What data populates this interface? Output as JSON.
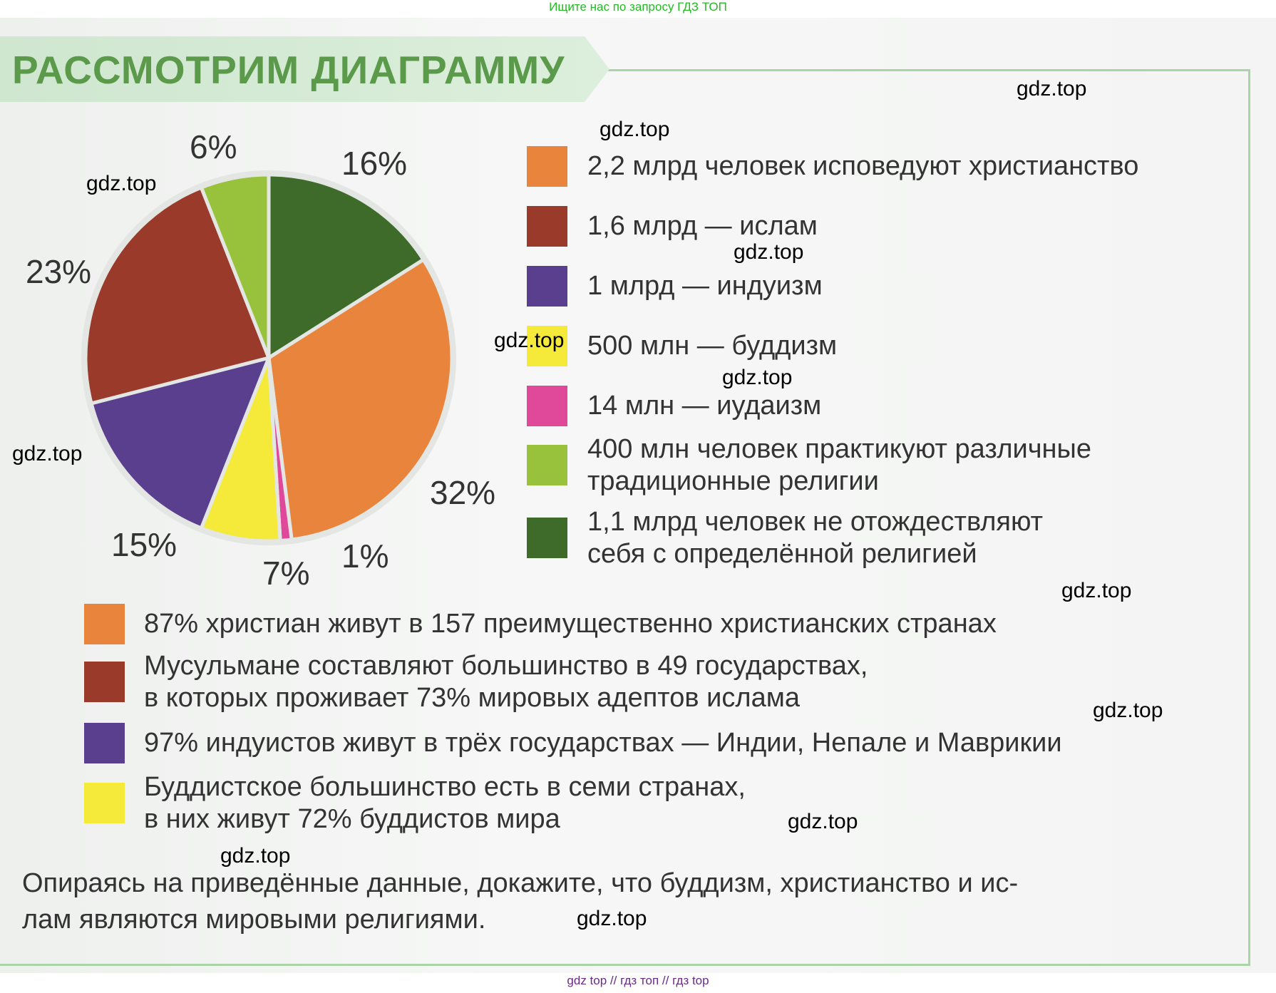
{
  "top_note": "Ищите нас по запросу ГДЗ ТОП",
  "footer": "gdz top  //  гдз топ  //  гдз top",
  "title": "РАССМОТРИМ ДИАГРАММУ",
  "chart_data": {
    "type": "pie",
    "title": "",
    "start": "top, clockwise",
    "slices": [
      {
        "name": "Не отождествляют себя с религией",
        "value": 16,
        "label": "16%",
        "color": "#3e6a2a"
      },
      {
        "name": "Христианство",
        "value": 32,
        "label": "32%",
        "color": "#e8843c"
      },
      {
        "name": "Иудаизм",
        "value": 1,
        "label": "1%",
        "color": "#e0489a"
      },
      {
        "name": "Буддизм",
        "value": 7,
        "label": "7%",
        "color": "#f5ea3a"
      },
      {
        "name": "Индуизм",
        "value": 15,
        "label": "15%",
        "color": "#5a3f8e"
      },
      {
        "name": "Ислам",
        "value": 23,
        "label": "23%",
        "color": "#9a3a2a"
      },
      {
        "name": "Традиционные религии",
        "value": 6,
        "label": "6%",
        "color": "#98c23c"
      }
    ]
  },
  "legend": [
    {
      "lines": [
        "2,2 млрд человек исповедуют христианство"
      ],
      "color": "#e8843c"
    },
    {
      "lines": [
        "1,6 млрд — ислам"
      ],
      "color": "#9a3a2a"
    },
    {
      "lines": [
        "1 млрд — индуизм"
      ],
      "color": "#5a3f8e"
    },
    {
      "lines": [
        "500 млн — буддизм"
      ],
      "color": "#f5ea3a"
    },
    {
      "lines": [
        "14 млн — иудаизм"
      ],
      "color": "#e0489a"
    },
    {
      "lines": [
        "400 млн человек практикуют различные",
        "традиционные религии"
      ],
      "color": "#98c23c"
    },
    {
      "lines": [
        "1,1 млрд человек не отождествляют",
        "себя с определённой религией"
      ],
      "color": "#3e6a2a"
    }
  ],
  "facts": [
    {
      "lines": [
        "87% христиан живут в 157 преимущественно христианских странах"
      ],
      "color": "#e8843c"
    },
    {
      "lines": [
        "Мусульмане составляют большинство в 49 государствах,",
        "в которых проживает 73% мировых адептов ислама"
      ],
      "color": "#9a3a2a"
    },
    {
      "lines": [
        "97% индуистов живут в трёх государствах — Индии, Непале и Маврикии"
      ],
      "color": "#5a3f8e"
    },
    {
      "lines": [
        "Буддистское большинство есть в семи странах,",
        "в них живут 72% буддистов мира"
      ],
      "color": "#f5ea3a"
    }
  ],
  "task": [
    "Опираясь на приведённые данные, докажите, что буддизм, христианство и ис-",
    "лам являются мировыми религиями."
  ],
  "watermark": "gdz.top"
}
